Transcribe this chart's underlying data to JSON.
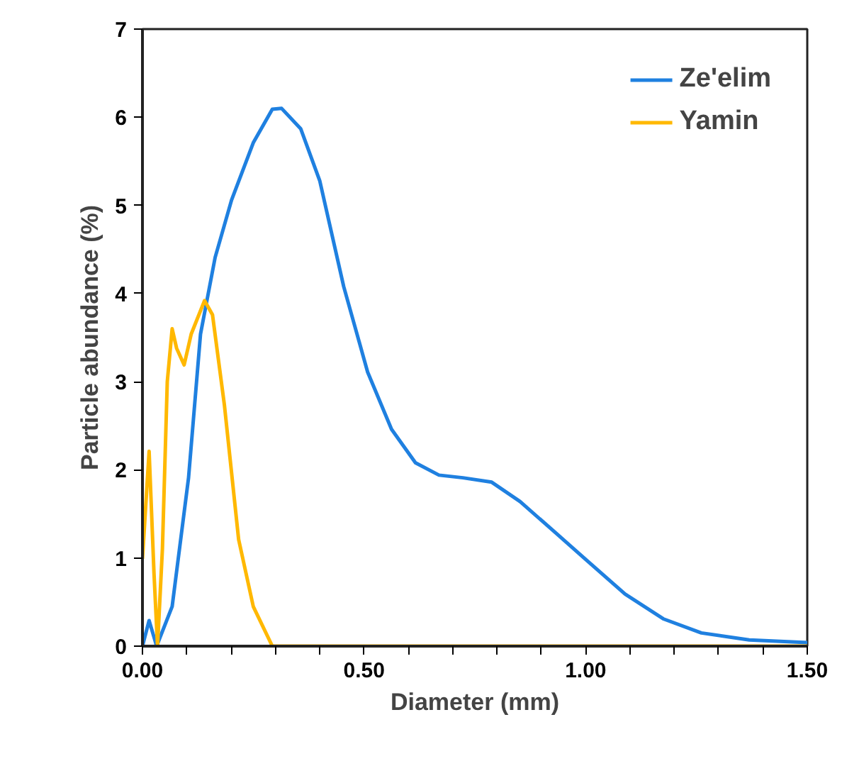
{
  "chart_data": {
    "type": "line",
    "xlabel": "Diameter (mm)",
    "ylabel": "Particle abundance (%)",
    "xlim": [
      0,
      1.5
    ],
    "ylim": [
      0,
      7
    ],
    "xticks": [
      {
        "value": 0,
        "label": "0.00"
      },
      {
        "value": 0.1,
        "label": null
      },
      {
        "value": 0.2,
        "label": null
      },
      {
        "value": 0.3,
        "label": null
      },
      {
        "value": 0.4,
        "label": null
      },
      {
        "value": 0.5,
        "label": "0.50"
      },
      {
        "value": 0.6,
        "label": null
      },
      {
        "value": 0.7,
        "label": null
      },
      {
        "value": 0.8,
        "label": null
      },
      {
        "value": 0.9,
        "label": null
      },
      {
        "value": 1.0,
        "label": "1.00"
      },
      {
        "value": 1.1,
        "label": null
      },
      {
        "value": 1.2,
        "label": null
      },
      {
        "value": 1.3,
        "label": null
      },
      {
        "value": 1.4,
        "label": null
      },
      {
        "value": 1.5,
        "label": "1.50"
      }
    ],
    "yticks": [
      0,
      1,
      2,
      3,
      4,
      5,
      6,
      7
    ],
    "grid": false,
    "legend": "top right",
    "marker": "none",
    "line_style": "solid",
    "series": [
      {
        "name": "Ze'elim",
        "color": "#1f80e0",
        "x": [
          0,
          0.015,
          0.032,
          0.067,
          0.104,
          0.131,
          0.164,
          0.201,
          0.25,
          0.293,
          0.314,
          0.357,
          0.4,
          0.454,
          0.508,
          0.562,
          0.616,
          0.669,
          0.723,
          0.788,
          0.852,
          0.938,
          1.003,
          1.089,
          1.175,
          1.261,
          1.369,
          1.5
        ],
        "values": [
          0,
          0.29,
          0,
          0.45,
          1.91,
          3.54,
          4.41,
          5.06,
          5.71,
          6.09,
          6.1,
          5.87,
          5.28,
          4.08,
          3.11,
          2.46,
          2.08,
          1.94,
          1.91,
          1.86,
          1.64,
          1.26,
          0.97,
          0.59,
          0.31,
          0.15,
          0.07,
          0.04
        ]
      },
      {
        "name": "Yamin",
        "color": "#ffb800",
        "x": [
          0,
          0.015,
          0.026,
          0.034,
          0.045,
          0.056,
          0.067,
          0.077,
          0.094,
          0.11,
          0.14,
          0.158,
          0.185,
          0.217,
          0.25,
          0.293,
          0.4,
          1.5
        ],
        "values": [
          0.99,
          2.21,
          0.83,
          0,
          1.1,
          3.0,
          3.6,
          3.38,
          3.19,
          3.54,
          3.92,
          3.76,
          2.73,
          1.21,
          0.45,
          0,
          0,
          0
        ]
      }
    ]
  }
}
